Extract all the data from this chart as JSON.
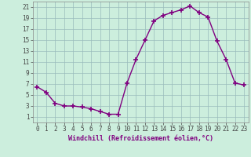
{
  "x": [
    0,
    1,
    2,
    3,
    4,
    5,
    6,
    7,
    8,
    9,
    10,
    11,
    12,
    13,
    14,
    15,
    16,
    17,
    18,
    19,
    20,
    21,
    22,
    23
  ],
  "y": [
    6.5,
    5.5,
    3.5,
    3.0,
    3.0,
    2.8,
    2.5,
    2.0,
    1.5,
    1.5,
    7.2,
    11.5,
    15.0,
    18.5,
    19.5,
    20.0,
    20.5,
    21.2,
    20.0,
    19.2,
    14.8,
    11.5,
    7.2,
    6.8
  ],
  "ylabel_ticks": [
    1,
    3,
    5,
    7,
    9,
    11,
    13,
    15,
    17,
    19,
    21
  ],
  "xlabel_ticks": [
    0,
    1,
    2,
    3,
    4,
    5,
    6,
    7,
    8,
    9,
    10,
    11,
    12,
    13,
    14,
    15,
    16,
    17,
    18,
    19,
    20,
    21,
    22,
    23
  ],
  "xlabel": "Windchill (Refroidissement éolien,°C)",
  "line_color": "#800080",
  "bg_color": "#cceedd",
  "grid_color": "#99bbbb",
  "ylim": [
    0,
    22
  ],
  "xlim": [
    -0.5,
    23.5
  ],
  "marker": "+",
  "markersize": 4,
  "markeredgewidth": 1.2,
  "linewidth": 1.0,
  "tick_fontsize": 5.5,
  "xlabel_fontsize": 6.0
}
